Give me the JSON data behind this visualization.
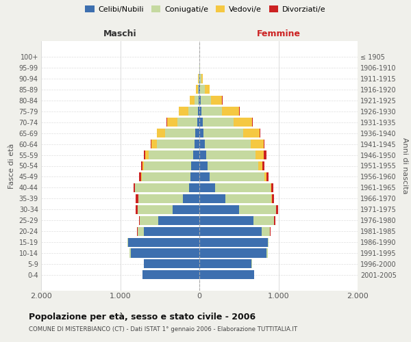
{
  "age_groups_top_to_bottom": [
    "100+",
    "95-99",
    "90-94",
    "85-89",
    "80-84",
    "75-79",
    "70-74",
    "65-69",
    "60-64",
    "55-59",
    "50-54",
    "45-49",
    "40-44",
    "35-39",
    "30-34",
    "25-29",
    "20-24",
    "15-19",
    "10-14",
    "5-9",
    "0-4"
  ],
  "birth_years_top_to_bottom": [
    "≤ 1905",
    "1906-1910",
    "1911-1915",
    "1916-1920",
    "1921-1925",
    "1926-1930",
    "1931-1935",
    "1936-1940",
    "1941-1945",
    "1946-1950",
    "1951-1955",
    "1956-1960",
    "1961-1965",
    "1966-1970",
    "1971-1975",
    "1976-1980",
    "1981-1985",
    "1986-1990",
    "1991-1995",
    "1996-2000",
    "2001-2005"
  ],
  "males_bottom_to_top": {
    "celibi": [
      720,
      700,
      870,
      900,
      700,
      520,
      340,
      210,
      130,
      110,
      100,
      80,
      60,
      55,
      30,
      20,
      8,
      5,
      2,
      0,
      0
    ],
    "coniugati": [
      1,
      3,
      10,
      5,
      80,
      230,
      440,
      560,
      680,
      620,
      600,
      560,
      480,
      380,
      250,
      120,
      50,
      15,
      3,
      0,
      0
    ],
    "vedovi": [
      0,
      0,
      0,
      0,
      0,
      1,
      2,
      3,
      5,
      10,
      20,
      40,
      70,
      100,
      130,
      120,
      60,
      25,
      8,
      2,
      0
    ],
    "divorziati": [
      0,
      0,
      1,
      2,
      5,
      10,
      20,
      30,
      15,
      20,
      20,
      25,
      8,
      5,
      3,
      2,
      0,
      0,
      0,
      0,
      0
    ]
  },
  "females_bottom_to_top": {
    "nubili": [
      690,
      660,
      850,
      870,
      790,
      680,
      500,
      330,
      200,
      130,
      105,
      90,
      70,
      55,
      40,
      25,
      20,
      10,
      5,
      2,
      0
    ],
    "coniugate": [
      1,
      3,
      15,
      5,
      100,
      260,
      470,
      580,
      700,
      690,
      640,
      620,
      580,
      500,
      390,
      260,
      130,
      55,
      18,
      3,
      0
    ],
    "vedove": [
      0,
      0,
      0,
      0,
      1,
      2,
      3,
      5,
      10,
      25,
      55,
      100,
      160,
      210,
      240,
      220,
      140,
      65,
      20,
      5,
      0
    ],
    "divorziate": [
      0,
      0,
      1,
      3,
      8,
      20,
      25,
      30,
      25,
      30,
      25,
      35,
      15,
      8,
      5,
      3,
      2,
      0,
      0,
      0,
      0
    ]
  },
  "colors": {
    "celibi": "#3d6faf",
    "coniugati": "#c5d9a0",
    "vedovi": "#f5c842",
    "divorziati": "#cc2222"
  },
  "xlim": 2000,
  "xtick_labels": [
    "2.000",
    "1.000",
    "0",
    "1.000",
    "2.000"
  ],
  "xtick_vals": [
    -2000,
    -1000,
    0,
    1000,
    2000
  ],
  "title": "Popolazione per età, sesso e stato civile - 2006",
  "subtitle": "COMUNE DI MISTERBIANCO (CT) - Dati ISTAT 1° gennaio 2006 - Elaborazione TUTTITALIA.IT",
  "ylabel_left": "Fasce di età",
  "ylabel_right": "Anni di nascita",
  "label_maschi": "Maschi",
  "label_femmine": "Femmine",
  "bg_color": "#f0f0eb",
  "plot_bg": "#ffffff",
  "legend_labels": [
    "Celibi/Nubili",
    "Coniugati/e",
    "Vedovi/e",
    "Divorziati/e"
  ]
}
